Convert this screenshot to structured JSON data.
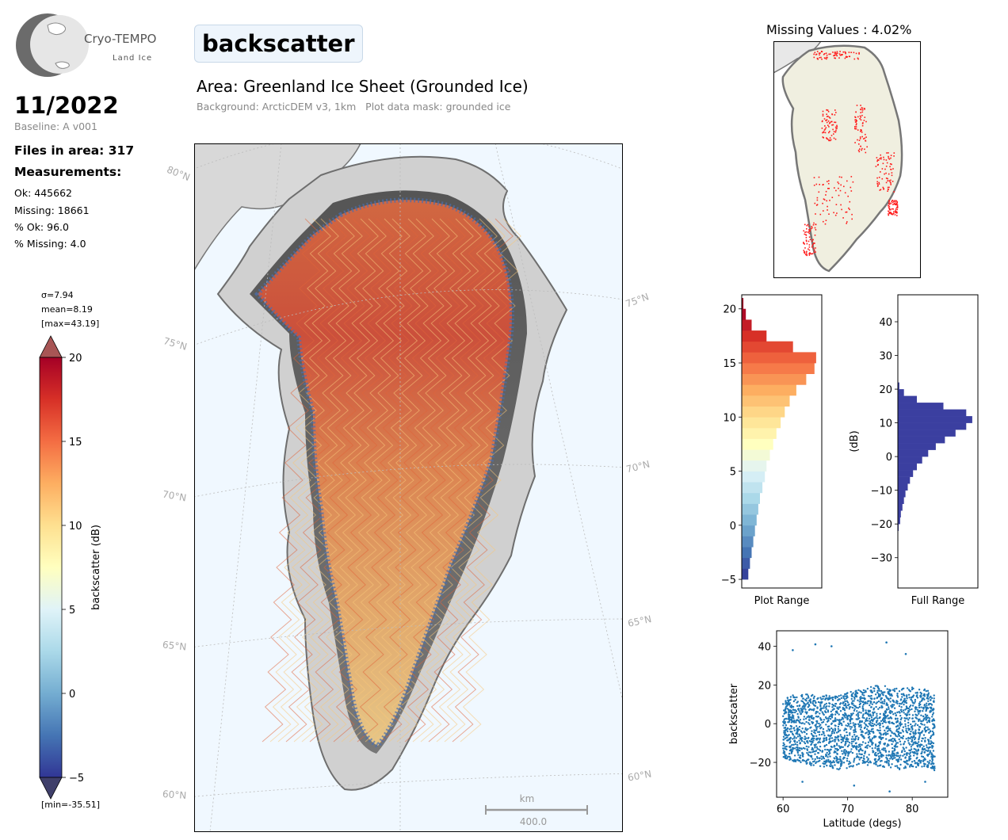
{
  "logo": {
    "name": "Cryo-TEMPO",
    "sub": "Land Ice"
  },
  "header": {
    "parameter": "backscatter",
    "area_title": "Area: Greenland Ice Sheet (Grounded Ice)",
    "area_subtitle": "Background: ArcticDEM v3, 1km   Plot data mask: grounded ice"
  },
  "summary": {
    "period": "11/2022",
    "baseline": "Baseline: A v001",
    "files": "Files in area: 317",
    "measurements_heading": "Measurements:",
    "ok": "Ok: 445662",
    "missing": "Missing: 18661",
    "pct_ok": "% Ok: 96.0",
    "pct_missing": "% Missing: 4.0"
  },
  "colorbar": {
    "sigma": "σ=7.94",
    "mean": "mean=8.19",
    "max": "[max=43.19]",
    "min": "[min=-35.51]",
    "label": "backscatter (dB)",
    "ticks": [
      "20",
      "15",
      "10",
      "5",
      "0",
      "−5"
    ],
    "range": [
      -5,
      20
    ],
    "colors": [
      "#313695",
      "#4575b4",
      "#74add1",
      "#abd9e9",
      "#e0f3f8",
      "#ffffbf",
      "#fee090",
      "#fdae61",
      "#f46d43",
      "#d73027",
      "#a50026"
    ]
  },
  "main_map": {
    "lat_labels_left": [
      "80°N",
      "75°N",
      "70°N",
      "65°N",
      "60°N"
    ],
    "lat_labels_right": [
      "75°N",
      "70°N",
      "65°N",
      "60°N"
    ],
    "scale_unit": "km",
    "scale_value": "400.0"
  },
  "missing_map": {
    "title": "Missing Values : 4.02%"
  },
  "chart_data": [
    {
      "type": "bar",
      "orientation": "horizontal",
      "title": "",
      "xlabel": "Plot Range",
      "ylabel": "",
      "ylim": [
        -5.8,
        21.3
      ],
      "yticks": [
        "20",
        "15",
        "10",
        "5",
        "0",
        "−5"
      ],
      "bins": [
        -5,
        -4,
        -3,
        -2,
        -1,
        0,
        1,
        2,
        3,
        4,
        5,
        6,
        7,
        8,
        9,
        10,
        11,
        12,
        13,
        14,
        15,
        16,
        17,
        18,
        19,
        20
      ],
      "values": [
        8,
        10,
        12,
        14,
        16,
        18,
        20,
        22,
        25,
        28,
        30,
        34,
        38,
        42,
        47,
        52,
        58,
        66,
        78,
        88,
        90,
        62,
        30,
        12,
        5,
        2
      ]
    },
    {
      "type": "bar",
      "orientation": "horizontal",
      "title": "",
      "xlabel": "Full Range",
      "ylabel": "(dB)",
      "ylim": [
        -39,
        48
      ],
      "yticks": [
        "40",
        "30",
        "20",
        "10",
        "0",
        "−10",
        "−20",
        "−30"
      ],
      "color": "#3b3fa0",
      "bins": [
        -22,
        -20,
        -18,
        -16,
        -14,
        -12,
        -10,
        -8,
        -6,
        -4,
        -2,
        0,
        2,
        4,
        6,
        8,
        10,
        12,
        14,
        16,
        18,
        20
      ],
      "values": [
        1,
        3,
        4,
        6,
        8,
        10,
        13,
        16,
        20,
        25,
        32,
        40,
        50,
        62,
        76,
        90,
        98,
        90,
        60,
        25,
        8,
        2
      ]
    },
    {
      "type": "scatter",
      "title": "",
      "xlabel": "Latitude (degs)",
      "ylabel": "backscatter",
      "xlim": [
        59,
        85.5
      ],
      "ylim": [
        -38,
        48
      ],
      "xticks": [
        "60",
        "70",
        "80"
      ],
      "yticks": [
        "40",
        "20",
        "0",
        "−20"
      ],
      "color": "#1f77b4",
      "bands": [
        {
          "x": 60,
          "lo": -18,
          "hi": 14
        },
        {
          "x": 62,
          "lo": -20,
          "hi": 16
        },
        {
          "x": 65,
          "lo": -22,
          "hi": 15
        },
        {
          "x": 68,
          "lo": -24,
          "hi": 15
        },
        {
          "x": 70,
          "lo": -23,
          "hi": 16
        },
        {
          "x": 72,
          "lo": -21,
          "hi": 18
        },
        {
          "x": 75,
          "lo": -22,
          "hi": 20
        },
        {
          "x": 78,
          "lo": -24,
          "hi": 18
        },
        {
          "x": 80,
          "lo": -23,
          "hi": 19
        },
        {
          "x": 82,
          "lo": -22,
          "hi": 18
        },
        {
          "x": 83.5,
          "lo": -25,
          "hi": 16
        }
      ],
      "outliers": [
        {
          "x": 61.5,
          "y": 38
        },
        {
          "x": 65,
          "y": 41
        },
        {
          "x": 67.5,
          "y": 40
        },
        {
          "x": 76,
          "y": 42
        },
        {
          "x": 79,
          "y": 36
        },
        {
          "x": 63,
          "y": -30
        },
        {
          "x": 71,
          "y": -32
        },
        {
          "x": 76.5,
          "y": -35
        },
        {
          "x": 82,
          "y": -30
        }
      ]
    }
  ]
}
